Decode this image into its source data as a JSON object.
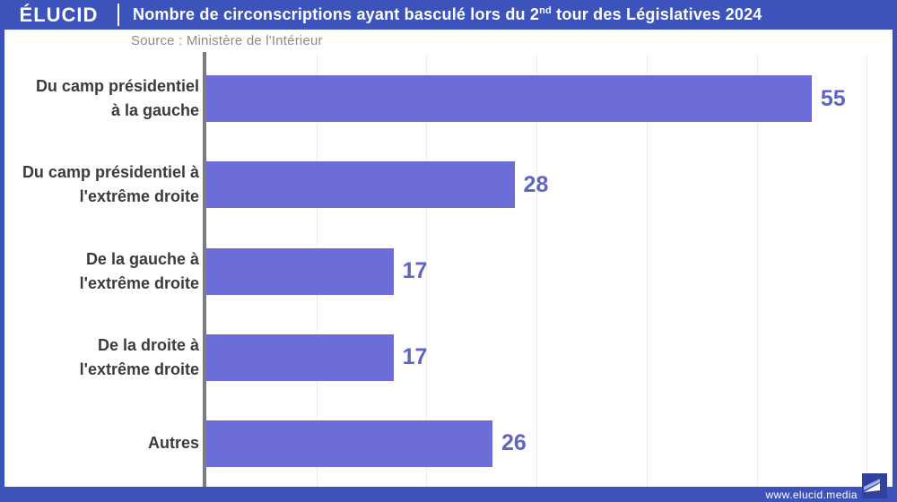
{
  "header": {
    "logo": "ÉLUCID",
    "title_pre": "Nombre de circonscriptions ayant basculé lors du 2",
    "title_sup": "nd",
    "title_post": " tour des Législatives 2024"
  },
  "source": "Source : Ministère de l'Intérieur",
  "footer": {
    "url": "www.elucid.media"
  },
  "colors": {
    "brand_blue": "#3d53bc",
    "bar": "#6c6dd6",
    "value_label": "#6064c4",
    "axis": "#7c7c7c",
    "gridline": "#ececec",
    "category_label": "#3b3b3b",
    "source_text": "#8b8b8b"
  },
  "chart_data": {
    "type": "bar",
    "orientation": "horizontal",
    "title": "Nombre de circonscriptions ayant basculé lors du 2nd tour des Législatives 2024",
    "source": "Source : Ministère de l'Intérieur",
    "categories": [
      "Du camp présidentiel\nà la gauche",
      "Du camp présidentiel à\nl'extrême droite",
      "De la gauche à\nl'extrême droite",
      "De la droite à\nl'extrême droite",
      "Autres"
    ],
    "values": [
      55,
      28,
      17,
      17,
      26
    ],
    "xlim": [
      0,
      60
    ],
    "grid_interval": 10,
    "grid": true,
    "legend": false,
    "value_labels": "end-of-bar"
  }
}
